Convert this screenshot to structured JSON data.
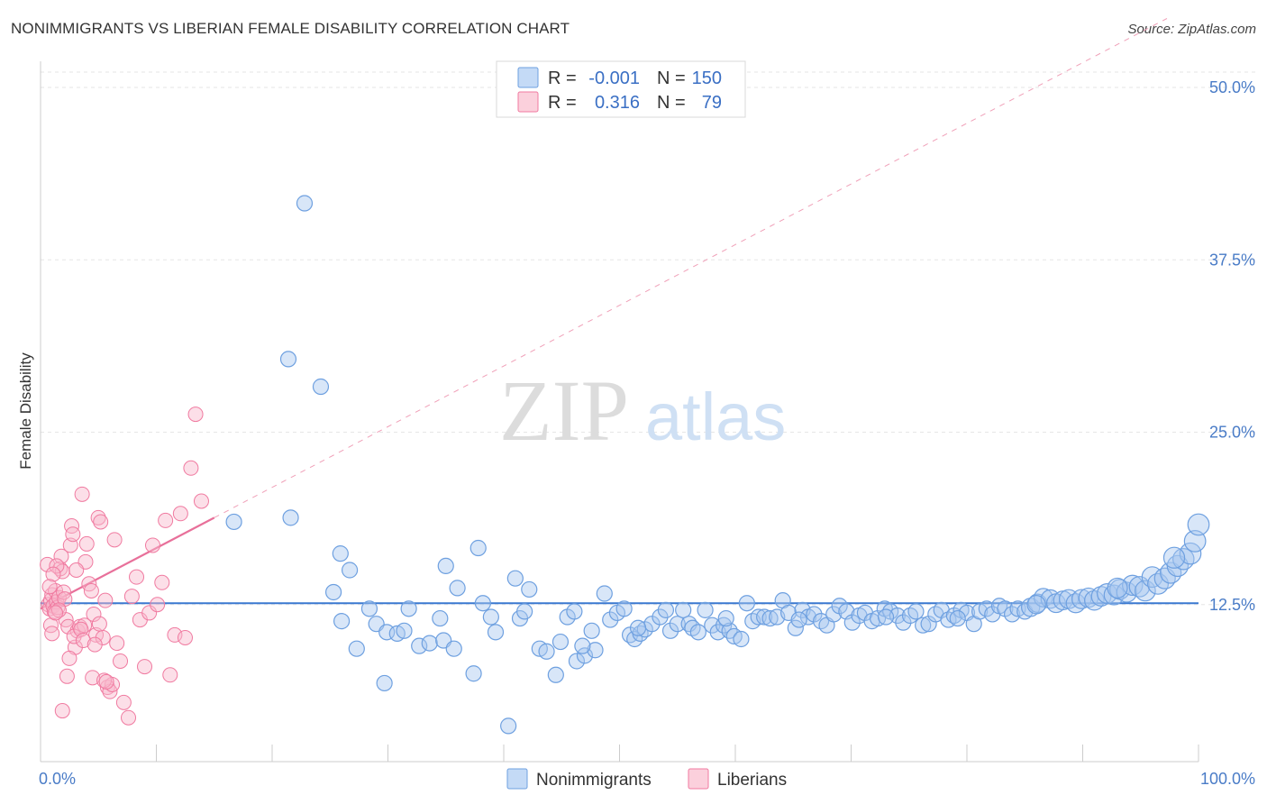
{
  "header": {
    "title": "NONIMMIGRANTS VS LIBERIAN FEMALE DISABILITY CORRELATION CHART",
    "source": "Source: ZipAtlas.com"
  },
  "watermark": {
    "zip": "ZIP",
    "atlas": "atlas"
  },
  "legend": {
    "rows": [
      {
        "r_label": "R =",
        "r_value": "-0.001",
        "n_label": "N =",
        "n_value": "150",
        "color": "#a8c8f0"
      },
      {
        "r_label": "R =",
        "r_value": "0.316",
        "n_label": "N =",
        "n_value": "79",
        "color": "#f8b8cc"
      }
    ]
  },
  "bottom_legend": {
    "items": [
      {
        "label": "Nonimmigrants",
        "color": "#a8c8f0"
      },
      {
        "label": "Liberians",
        "color": "#f8b8cc"
      }
    ]
  },
  "chart_data": {
    "type": "scatter",
    "title": "NONIMMIGRANTS VS LIBERIAN FEMALE DISABILITY CORRELATION CHART",
    "xlabel": "",
    "ylabel": "Female Disability",
    "xlim": [
      0,
      100
    ],
    "ylim": [
      0,
      50
    ],
    "x_tick_labels": [
      "0.0%",
      "100.0%"
    ],
    "y_ticks": [
      12.5,
      25.0,
      37.5,
      50.0
    ],
    "y_tick_labels": [
      "12.5%",
      "25.0%",
      "37.5%",
      "50.0%"
    ],
    "colors": {
      "Nonimmigrants": "#6ea0e0",
      "Liberians": "#f07aa0"
    },
    "series": [
      {
        "name": "Nonimmigrants",
        "trend": {
          "x0": 0,
          "y0": 12.6,
          "x1": 100,
          "y1": 12.6
        },
        "points": [
          [
            22.8,
            41.6
          ],
          [
            21.4,
            30.3
          ],
          [
            24.2,
            28.3
          ],
          [
            16.7,
            18.5
          ],
          [
            21.6,
            18.8
          ],
          [
            25.9,
            16.2
          ],
          [
            26.7,
            15.0
          ],
          [
            25.3,
            13.4
          ],
          [
            26.0,
            11.3
          ],
          [
            27.3,
            9.3
          ],
          [
            28.4,
            12.2
          ],
          [
            29.0,
            11.1
          ],
          [
            29.9,
            10.5
          ],
          [
            30.8,
            10.4
          ],
          [
            29.7,
            6.8
          ],
          [
            31.4,
            10.6
          ],
          [
            32.7,
            9.5
          ],
          [
            33.6,
            9.7
          ],
          [
            34.5,
            11.5
          ],
          [
            34.8,
            9.9
          ],
          [
            35.7,
            9.3
          ],
          [
            35.0,
            15.3
          ],
          [
            36.0,
            13.7
          ],
          [
            37.4,
            7.5
          ],
          [
            37.8,
            16.6
          ],
          [
            38.2,
            12.6
          ],
          [
            38.9,
            11.6
          ],
          [
            39.3,
            10.5
          ],
          [
            40.4,
            3.7
          ],
          [
            41.0,
            14.4
          ],
          [
            41.4,
            11.5
          ],
          [
            41.8,
            12.0
          ],
          [
            42.2,
            13.6
          ],
          [
            43.1,
            9.3
          ],
          [
            43.7,
            9.1
          ],
          [
            44.5,
            7.4
          ],
          [
            44.9,
            9.8
          ],
          [
            45.5,
            11.6
          ],
          [
            46.1,
            12.0
          ],
          [
            46.3,
            8.4
          ],
          [
            47.0,
            8.8
          ],
          [
            47.6,
            10.6
          ],
          [
            47.9,
            9.2
          ],
          [
            48.7,
            13.3
          ],
          [
            49.2,
            11.4
          ],
          [
            49.8,
            11.9
          ],
          [
            50.4,
            12.2
          ],
          [
            50.9,
            10.3
          ],
          [
            51.3,
            10.0
          ],
          [
            51.8,
            10.4
          ],
          [
            52.2,
            10.7
          ],
          [
            52.8,
            11.1
          ],
          [
            53.5,
            11.6
          ],
          [
            54.0,
            12.1
          ],
          [
            54.4,
            10.6
          ],
          [
            55.0,
            11.1
          ],
          [
            55.5,
            12.1
          ],
          [
            56.0,
            11.1
          ],
          [
            56.3,
            10.8
          ],
          [
            56.8,
            10.5
          ],
          [
            57.4,
            12.1
          ],
          [
            58.0,
            11.0
          ],
          [
            58.5,
            10.5
          ],
          [
            59.0,
            11.0
          ],
          [
            59.5,
            10.6
          ],
          [
            59.9,
            10.2
          ],
          [
            60.5,
            10.0
          ],
          [
            61.0,
            12.6
          ],
          [
            61.5,
            11.3
          ],
          [
            62.0,
            11.6
          ],
          [
            62.5,
            11.6
          ],
          [
            63.0,
            11.5
          ],
          [
            63.6,
            11.6
          ],
          [
            64.1,
            12.8
          ],
          [
            64.6,
            11.9
          ],
          [
            65.2,
            10.8
          ],
          [
            65.8,
            12.1
          ],
          [
            66.3,
            11.6
          ],
          [
            66.8,
            11.8
          ],
          [
            67.4,
            11.3
          ],
          [
            67.9,
            11.0
          ],
          [
            68.5,
            11.8
          ],
          [
            69.0,
            12.4
          ],
          [
            69.6,
            12.0
          ],
          [
            70.1,
            11.2
          ],
          [
            70.7,
            11.7
          ],
          [
            71.2,
            11.9
          ],
          [
            71.8,
            11.3
          ],
          [
            72.3,
            11.5
          ],
          [
            72.9,
            12.2
          ],
          [
            73.4,
            12.0
          ],
          [
            74.0,
            11.7
          ],
          [
            74.5,
            11.2
          ],
          [
            75.1,
            11.7
          ],
          [
            75.6,
            12.0
          ],
          [
            76.2,
            11.0
          ],
          [
            76.7,
            11.1
          ],
          [
            77.3,
            11.8
          ],
          [
            77.8,
            12.1
          ],
          [
            78.4,
            11.4
          ],
          [
            78.9,
            11.7
          ],
          [
            79.5,
            12.1
          ],
          [
            80.0,
            11.9
          ],
          [
            80.6,
            11.1
          ],
          [
            81.1,
            12.0
          ],
          [
            81.7,
            12.2
          ],
          [
            82.2,
            11.8
          ],
          [
            82.8,
            12.4
          ],
          [
            83.3,
            12.2
          ],
          [
            83.9,
            11.8
          ],
          [
            84.4,
            12.2
          ],
          [
            85.0,
            12.0
          ],
          [
            85.5,
            12.3
          ],
          [
            86.1,
            12.6
          ],
          [
            86.6,
            13.0
          ],
          [
            87.2,
            12.9
          ],
          [
            87.7,
            12.6
          ],
          [
            88.3,
            12.8
          ],
          [
            88.8,
            12.9
          ],
          [
            89.4,
            12.6
          ],
          [
            89.9,
            12.9
          ],
          [
            90.5,
            13.0
          ],
          [
            91.0,
            12.8
          ],
          [
            91.6,
            13.1
          ],
          [
            92.1,
            13.3
          ],
          [
            92.7,
            13.2
          ],
          [
            93.2,
            13.6
          ],
          [
            93.8,
            13.4
          ],
          [
            94.3,
            13.9
          ],
          [
            94.9,
            13.8
          ],
          [
            95.4,
            13.5
          ],
          [
            96.0,
            14.5
          ],
          [
            96.5,
            14.0
          ],
          [
            97.1,
            14.4
          ],
          [
            97.6,
            14.8
          ],
          [
            98.2,
            15.3
          ],
          [
            98.7,
            15.8
          ],
          [
            99.3,
            16.2
          ],
          [
            99.7,
            17.1
          ],
          [
            100.0,
            18.3
          ],
          [
            97.9,
            15.9
          ],
          [
            93.0,
            13.7
          ],
          [
            86.0,
            12.5
          ],
          [
            79.2,
            11.5
          ],
          [
            73.0,
            11.6
          ],
          [
            65.5,
            11.4
          ],
          [
            59.2,
            11.5
          ],
          [
            51.6,
            10.8
          ],
          [
            46.8,
            9.5
          ],
          [
            31.8,
            12.2
          ]
        ]
      },
      {
        "name": "Liberians",
        "trend": {
          "x0": 0,
          "y0": 12.2,
          "x1": 15,
          "y1": 18.8
        },
        "points": [
          [
            0.3,
            12.5
          ],
          [
            0.4,
            12.2
          ],
          [
            0.5,
            12.8
          ],
          [
            0.6,
            13.2
          ],
          [
            0.7,
            12.4
          ],
          [
            0.8,
            12.0
          ],
          [
            0.9,
            13.5
          ],
          [
            1.0,
            12.7
          ],
          [
            1.1,
            12.3
          ],
          [
            1.2,
            13.0
          ],
          [
            0.2,
            15.4
          ],
          [
            0.5,
            11.0
          ],
          [
            0.6,
            10.4
          ],
          [
            1.3,
            15.1
          ],
          [
            1.4,
            16.0
          ],
          [
            1.5,
            14.9
          ],
          [
            1.6,
            13.4
          ],
          [
            1.7,
            12.9
          ],
          [
            1.8,
            11.4
          ],
          [
            2.0,
            10.9
          ],
          [
            2.2,
            16.8
          ],
          [
            2.3,
            18.2
          ],
          [
            2.4,
            17.6
          ],
          [
            2.6,
            9.4
          ],
          [
            2.8,
            10.6
          ],
          [
            3.0,
            10.9
          ],
          [
            3.2,
            20.5
          ],
          [
            3.4,
            11.0
          ],
          [
            3.5,
            15.6
          ],
          [
            3.6,
            16.9
          ],
          [
            3.8,
            14.0
          ],
          [
            4.0,
            13.5
          ],
          [
            4.2,
            11.8
          ],
          [
            4.4,
            10.3
          ],
          [
            4.6,
            18.8
          ],
          [
            4.8,
            18.5
          ],
          [
            5.0,
            10.1
          ],
          [
            5.2,
            12.8
          ],
          [
            5.4,
            6.5
          ],
          [
            5.6,
            6.2
          ],
          [
            5.8,
            6.7
          ],
          [
            6.0,
            17.2
          ],
          [
            6.2,
            9.7
          ],
          [
            6.5,
            8.4
          ],
          [
            6.8,
            5.4
          ],
          [
            7.2,
            4.3
          ],
          [
            7.5,
            13.1
          ],
          [
            7.9,
            14.5
          ],
          [
            8.2,
            11.4
          ],
          [
            8.6,
            8.0
          ],
          [
            9.0,
            11.9
          ],
          [
            9.3,
            16.8
          ],
          [
            9.7,
            12.5
          ],
          [
            10.1,
            14.1
          ],
          [
            10.4,
            18.6
          ],
          [
            10.8,
            7.4
          ],
          [
            11.2,
            10.3
          ],
          [
            11.7,
            19.1
          ],
          [
            12.1,
            10.1
          ],
          [
            12.6,
            22.4
          ],
          [
            13.0,
            26.3
          ],
          [
            13.5,
            20.0
          ],
          [
            1.5,
            4.8
          ],
          [
            1.9,
            7.3
          ],
          [
            2.1,
            8.6
          ],
          [
            2.5,
            10.2
          ],
          [
            3.1,
            10.7
          ],
          [
            3.3,
            9.9
          ],
          [
            4.1,
            7.2
          ],
          [
            4.3,
            9.6
          ],
          [
            4.7,
            11.1
          ],
          [
            5.1,
            7.0
          ],
          [
            5.3,
            6.9
          ],
          [
            1.0,
            15.3
          ],
          [
            2.7,
            15.0
          ],
          [
            0.7,
            14.7
          ],
          [
            1.2,
            12.1
          ],
          [
            0.4,
            13.8
          ],
          [
            0.9,
            11.9
          ]
        ]
      }
    ]
  }
}
